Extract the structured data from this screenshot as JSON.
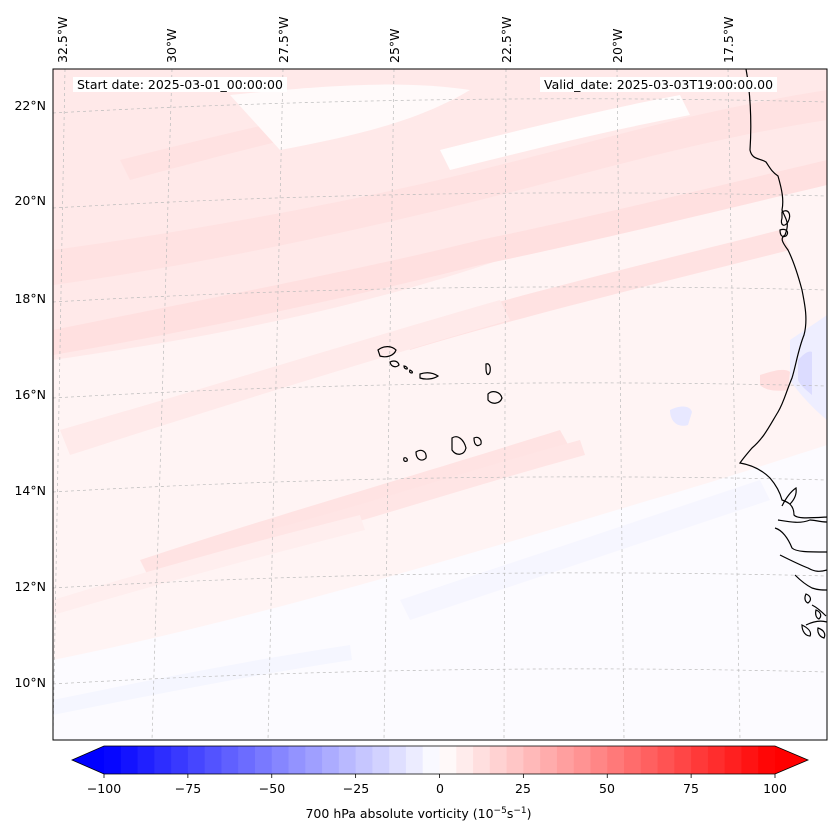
{
  "map": {
    "start_date": "Start date: 2025-03-01_00:00:00",
    "valid_date": "Valid_date: 2025-03-03T19:00:00.00",
    "lon_labels": [
      "32.5°W",
      "30°W",
      "27.5°W",
      "25°W",
      "22.5°W",
      "20°W",
      "17.5°W"
    ],
    "lat_labels": [
      "22°N",
      "20°N",
      "18°N",
      "16°N",
      "14°N",
      "12°N",
      "10°N"
    ],
    "features": [
      "Cape Verde islands",
      "West African coastline"
    ]
  },
  "colorbar": {
    "label_main": "700 hPa absolute vorticity (10",
    "label_exp1": "−5",
    "label_mid": "s",
    "label_exp2": "−1",
    "label_end": ")",
    "ticks": [
      "−100",
      "−75",
      "−50",
      "−25",
      "0",
      "25",
      "50",
      "75",
      "100"
    ],
    "min": -100,
    "max": 100,
    "colors": {
      "negative": "#0000ff",
      "zero": "#ffffff",
      "positive": "#ff0000"
    }
  }
}
